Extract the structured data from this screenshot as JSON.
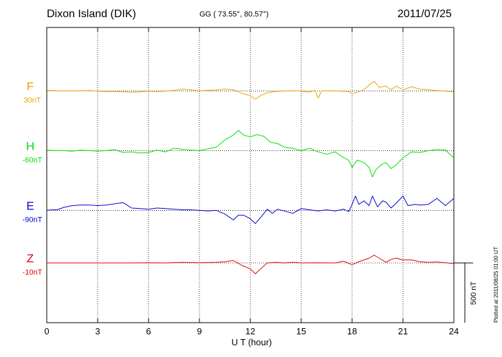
{
  "header": {
    "station": "Dixon Island (DIK)",
    "coords": "GG ( 73.55°,  80.57°)",
    "date": "2011/07/25"
  },
  "footer": {
    "plotted": "Plotted at 2011/08/25 01:00 UT",
    "scale_label": "500 nT"
  },
  "chart_data": {
    "type": "line",
    "xlabel": "U T (hour)",
    "xlim": [
      0,
      24
    ],
    "xticks": [
      "0",
      "3",
      "6",
      "9",
      "12",
      "15",
      "18",
      "21",
      "24"
    ],
    "grid": true,
    "scale_bar_nT": 500,
    "series": [
      {
        "name": "F",
        "offset_label": "30nT",
        "color": "#f0a000",
        "baseline_nT": 1200,
        "values": [
          [
            0,
            1205
          ],
          [
            0.5,
            1202
          ],
          [
            1,
            1200
          ],
          [
            1.5,
            1200
          ],
          [
            2,
            1202
          ],
          [
            2.5,
            1203
          ],
          [
            3,
            1198
          ],
          [
            3.5,
            1195
          ],
          [
            4,
            1196
          ],
          [
            4.5,
            1193
          ],
          [
            5,
            1190
          ],
          [
            5.5,
            1193
          ],
          [
            6,
            1198
          ],
          [
            6.5,
            1195
          ],
          [
            7,
            1198
          ],
          [
            7.5,
            1205
          ],
          [
            8,
            1215
          ],
          [
            8.5,
            1210
          ],
          [
            9,
            1200
          ],
          [
            9.5,
            1205
          ],
          [
            10,
            1208
          ],
          [
            10.5,
            1215
          ],
          [
            11,
            1210
          ],
          [
            11.5,
            1180
          ],
          [
            12,
            1160
          ],
          [
            12.3,
            1130
          ],
          [
            12.6,
            1160
          ],
          [
            13,
            1185
          ],
          [
            13.5,
            1195
          ],
          [
            14,
            1200
          ],
          [
            14.5,
            1202
          ],
          [
            15,
            1198
          ],
          [
            15.5,
            1190
          ],
          [
            15.8,
            1205
          ],
          [
            16,
            1140
          ],
          [
            16.2,
            1200
          ],
          [
            16.8,
            1202
          ],
          [
            17.3,
            1198
          ],
          [
            17.8,
            1195
          ],
          [
            18,
            1175
          ],
          [
            18.3,
            1190
          ],
          [
            18.7,
            1210
          ],
          [
            19,
            1250
          ],
          [
            19.3,
            1280
          ],
          [
            19.6,
            1230
          ],
          [
            20,
            1240
          ],
          [
            20.3,
            1210
          ],
          [
            20.6,
            1240
          ],
          [
            21,
            1210
          ],
          [
            21.5,
            1235
          ],
          [
            22,
            1215
          ],
          [
            22.5,
            1210
          ],
          [
            23,
            1203
          ],
          [
            23.5,
            1198
          ],
          [
            24,
            1192
          ]
        ]
      },
      {
        "name": "H",
        "offset_label": "-60nT",
        "color": "#00e000",
        "baseline_nT": 700,
        "values": [
          [
            0,
            705
          ],
          [
            0.5,
            700
          ],
          [
            1,
            700
          ],
          [
            1.5,
            695
          ],
          [
            2,
            705
          ],
          [
            2.5,
            700
          ],
          [
            3,
            695
          ],
          [
            3.5,
            700
          ],
          [
            4,
            710
          ],
          [
            4.5,
            685
          ],
          [
            5,
            690
          ],
          [
            5.5,
            680
          ],
          [
            6,
            685
          ],
          [
            6.5,
            705
          ],
          [
            7,
            690
          ],
          [
            7.5,
            720
          ],
          [
            8,
            712
          ],
          [
            8.5,
            705
          ],
          [
            9,
            700
          ],
          [
            9.5,
            715
          ],
          [
            10,
            730
          ],
          [
            10.5,
            790
          ],
          [
            11,
            830
          ],
          [
            11.3,
            870
          ],
          [
            11.6,
            830
          ],
          [
            12,
            815
          ],
          [
            12.4,
            835
          ],
          [
            12.8,
            820
          ],
          [
            13.2,
            770
          ],
          [
            13.6,
            760
          ],
          [
            14,
            730
          ],
          [
            14.5,
            720
          ],
          [
            15,
            700
          ],
          [
            15.5,
            720
          ],
          [
            16,
            690
          ],
          [
            16.5,
            670
          ],
          [
            17,
            690
          ],
          [
            17.4,
            650
          ],
          [
            17.8,
            620
          ],
          [
            18,
            560
          ],
          [
            18.3,
            620
          ],
          [
            18.7,
            600
          ],
          [
            19,
            560
          ],
          [
            19.2,
            480
          ],
          [
            19.4,
            540
          ],
          [
            19.7,
            580
          ],
          [
            20,
            600
          ],
          [
            20.3,
            550
          ],
          [
            20.6,
            580
          ],
          [
            21,
            640
          ],
          [
            21.5,
            690
          ],
          [
            22,
            685
          ],
          [
            22.5,
            700
          ],
          [
            23,
            710
          ],
          [
            23.5,
            705
          ],
          [
            24,
            640
          ]
        ]
      },
      {
        "name": "E",
        "offset_label": "-90nT",
        "color": "#0000d0",
        "baseline_nT": 200,
        "values": [
          [
            0,
            200
          ],
          [
            0.3,
            205
          ],
          [
            0.6,
            205
          ],
          [
            1,
            225
          ],
          [
            1.5,
            240
          ],
          [
            2,
            245
          ],
          [
            2.5,
            245
          ],
          [
            3,
            240
          ],
          [
            3.5,
            245
          ],
          [
            4,
            255
          ],
          [
            4.5,
            265
          ],
          [
            5,
            220
          ],
          [
            5.5,
            215
          ],
          [
            6,
            210
          ],
          [
            6.5,
            220
          ],
          [
            7,
            215
          ],
          [
            7.5,
            210
          ],
          [
            8,
            205
          ],
          [
            8.5,
            205
          ],
          [
            9,
            200
          ],
          [
            9.5,
            195
          ],
          [
            10,
            200
          ],
          [
            10.5,
            170
          ],
          [
            11,
            120
          ],
          [
            11.3,
            160
          ],
          [
            11.6,
            160
          ],
          [
            12,
            130
          ],
          [
            12.3,
            90
          ],
          [
            12.6,
            140
          ],
          [
            13,
            210
          ],
          [
            13.3,
            175
          ],
          [
            13.6,
            210
          ],
          [
            14,
            195
          ],
          [
            14.5,
            175
          ],
          [
            15,
            215
          ],
          [
            15.5,
            205
          ],
          [
            16,
            195
          ],
          [
            16.5,
            205
          ],
          [
            17,
            195
          ],
          [
            17.5,
            210
          ],
          [
            17.8,
            190
          ],
          [
            18,
            250
          ],
          [
            18.2,
            320
          ],
          [
            18.4,
            250
          ],
          [
            18.7,
            280
          ],
          [
            19,
            240
          ],
          [
            19.2,
            320
          ],
          [
            19.5,
            230
          ],
          [
            19.8,
            280
          ],
          [
            20,
            270
          ],
          [
            20.3,
            220
          ],
          [
            20.6,
            260
          ],
          [
            21,
            320
          ],
          [
            21.3,
            240
          ],
          [
            21.7,
            250
          ],
          [
            22,
            245
          ],
          [
            22.5,
            250
          ],
          [
            23,
            300
          ],
          [
            23.5,
            240
          ],
          [
            24,
            300
          ]
        ]
      },
      {
        "name": "Z",
        "offset_label": "-10nT",
        "color": "#e00000",
        "baseline_nT": -240,
        "values": [
          [
            0,
            -240
          ],
          [
            1,
            -240
          ],
          [
            2,
            -240
          ],
          [
            3,
            -240
          ],
          [
            4,
            -240
          ],
          [
            5,
            -240
          ],
          [
            6,
            -238
          ],
          [
            7,
            -240
          ],
          [
            8,
            -235
          ],
          [
            9,
            -238
          ],
          [
            10,
            -235
          ],
          [
            10.5,
            -230
          ],
          [
            11,
            -220
          ],
          [
            11.5,
            -260
          ],
          [
            12,
            -290
          ],
          [
            12.3,
            -330
          ],
          [
            12.6,
            -290
          ],
          [
            13,
            -240
          ],
          [
            13.5,
            -235
          ],
          [
            14,
            -240
          ],
          [
            14.5,
            -235
          ],
          [
            15,
            -240
          ],
          [
            16,
            -238
          ],
          [
            17,
            -240
          ],
          [
            17.5,
            -225
          ],
          [
            18,
            -255
          ],
          [
            18.3,
            -235
          ],
          [
            18.7,
            -215
          ],
          [
            19,
            -200
          ],
          [
            19.3,
            -175
          ],
          [
            19.6,
            -200
          ],
          [
            20,
            -235
          ],
          [
            20.3,
            -210
          ],
          [
            20.6,
            -200
          ],
          [
            21,
            -215
          ],
          [
            21.5,
            -215
          ],
          [
            22,
            -230
          ],
          [
            22.5,
            -235
          ],
          [
            23,
            -232
          ],
          [
            23.5,
            -238
          ],
          [
            24,
            -245
          ]
        ]
      }
    ]
  }
}
